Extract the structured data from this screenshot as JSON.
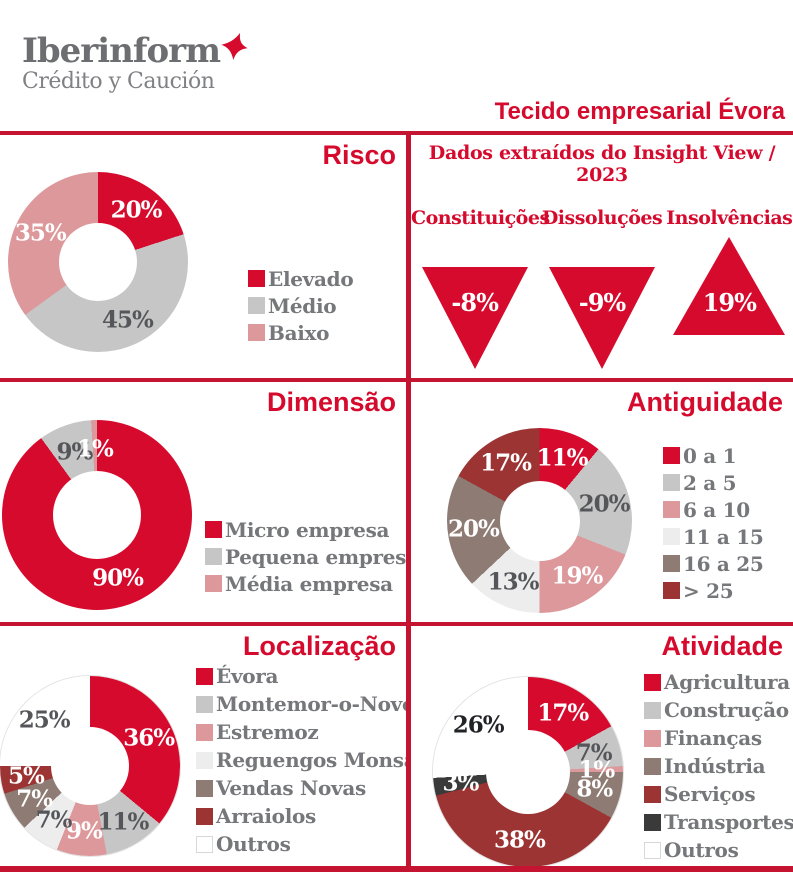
{
  "brand": {
    "name": "Iberinform",
    "tagline": "Crédito y Caución",
    "mark_color": "#D50A2D"
  },
  "header": {
    "title": "Tecido empresarial Évora"
  },
  "colors": {
    "accent_red": "#D50A2D",
    "grid_line_red": "#C41432",
    "gray": "#C6C6C6",
    "pink": "#DD989B",
    "light_gray": "#EDEDED",
    "taupe": "#8E7B74",
    "dark_red_brown": "#9B3433",
    "charcoal": "#3A3A3A",
    "legend_text": "#76777A",
    "dark_label": "#55565A"
  },
  "chart_data": [
    {
      "id": "risco",
      "type": "pie",
      "title": "Risco",
      "legend_position": "right",
      "labels": [
        "Elevado",
        "Médio",
        "Baixo"
      ],
      "values": [
        20,
        45,
        35
      ],
      "colors": [
        "#D50A2D",
        "#C6C6C6",
        "#DD989B"
      ],
      "label_colors": [
        "#FFFFFF",
        "#55565A",
        "#FFFFFF"
      ]
    },
    {
      "id": "indicadores",
      "type": "kpi",
      "title": "Dados extraídos do Insight View / 2023",
      "categories": [
        "Constituições",
        "Dissoluções",
        "Insolvências"
      ],
      "values": [
        "-8%",
        "-9%",
        "19%"
      ],
      "directions": [
        "down",
        "down",
        "up"
      ]
    },
    {
      "id": "dimensao",
      "type": "pie",
      "title": "Dimensão",
      "legend_position": "right",
      "labels": [
        "Micro empresa",
        "Pequena empresa",
        "Média empresa"
      ],
      "values": [
        90,
        9,
        1
      ],
      "colors": [
        "#D50A2D",
        "#C6C6C6",
        "#DD989B"
      ],
      "label_colors": [
        "#FFFFFF",
        "#55565A",
        "#FFFFFF"
      ]
    },
    {
      "id": "antiguidade",
      "type": "pie",
      "title": "Antiguidade",
      "legend_position": "right",
      "labels": [
        "0 a 1",
        "2 a 5",
        "6 a 10",
        "11 a 15",
        "16 a 25",
        "> 25"
      ],
      "values": [
        11,
        20,
        19,
        13,
        20,
        17
      ],
      "colors": [
        "#D50A2D",
        "#C6C6C6",
        "#DD989B",
        "#EDEDED",
        "#8E7B74",
        "#9B3433"
      ],
      "label_colors": [
        "#FFFFFF",
        "#55565A",
        "#FFFFFF",
        "#55565A",
        "#FFFFFF",
        "#FFFFFF"
      ]
    },
    {
      "id": "localizacao",
      "type": "pie",
      "title": "Localização",
      "legend_position": "right",
      "labels": [
        "Évora",
        "Montemor-o-Novo",
        "Estremoz",
        "Reguengos Monsaraz",
        "Vendas Novas",
        "Arraiolos",
        "Outros"
      ],
      "values": [
        36,
        11,
        9,
        7,
        7,
        5,
        25
      ],
      "colors": [
        "#D50A2D",
        "#C6C6C6",
        "#DD989B",
        "#EDEDED",
        "#8E7B74",
        "#9B3433",
        "#FFFFFF"
      ],
      "label_colors": [
        "#FFFFFF",
        "#55565A",
        "#FFFFFF",
        "#55565A",
        "#FFFFFF",
        "#FFFFFF",
        "#55565A"
      ]
    },
    {
      "id": "atividade",
      "type": "pie",
      "title": "Atividade",
      "legend_position": "right",
      "labels": [
        "Agricultura",
        "Construção",
        "Finanças",
        "Indústria",
        "Serviços",
        "Transportes",
        "Outros"
      ],
      "values": [
        17,
        7,
        1,
        8,
        38,
        3,
        26
      ],
      "colors": [
        "#D50A2D",
        "#C6C6C6",
        "#DD989B",
        "#8E7B74",
        "#9B3433",
        "#3A3A3A",
        "#FFFFFF"
      ],
      "label_colors": [
        "#FFFFFF",
        "#55565A",
        "#FFFFFF",
        "#FFFFFF",
        "#FFFFFF",
        "#FFFFFF",
        "#222326"
      ]
    }
  ]
}
